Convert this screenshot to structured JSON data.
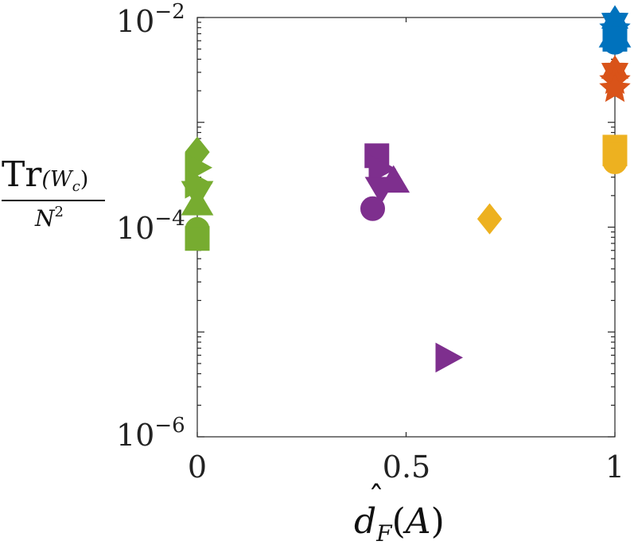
{
  "chart_data": {
    "type": "scatter",
    "title": "",
    "xlabel": {
      "base": "d",
      "hat": "ˆ",
      "sub": "F",
      "paren_open": "(",
      "arg": "A",
      "paren_close": ")"
    },
    "ylabel": {
      "num_text": "Tr",
      "num_sub": "(W",
      "num_sub_c": "c",
      "num_sub_close": ")",
      "den_text": "N",
      "den_sup": "2"
    },
    "xlim": [
      0,
      1
    ],
    "ylim": [
      1e-06,
      0.01
    ],
    "yscale": "log",
    "grid": false,
    "x_ticks": [
      "0",
      "0.5",
      "1"
    ],
    "y_ticks": [
      {
        "value": 1e-06,
        "base": "10",
        "exp": "−6"
      },
      {
        "value": 0.0001,
        "base": "10",
        "exp": "−4"
      },
      {
        "value": 0.01,
        "base": "10",
        "exp": "−2"
      }
    ],
    "series": [
      {
        "color": "#0072BD",
        "points": [
          {
            "x": 1.0,
            "y": 0.0093,
            "marker": "hexagram"
          },
          {
            "x": 1.0,
            "y": 0.0078,
            "marker": "pentagram"
          },
          {
            "x": 1.0,
            "y": 0.0068,
            "marker": "triangle-up"
          },
          {
            "x": 1.0,
            "y": 0.0062,
            "marker": "square"
          },
          {
            "x": 1.0,
            "y": 0.0058,
            "marker": "circle"
          }
        ]
      },
      {
        "color": "#D95319",
        "points": [
          {
            "x": 1.0,
            "y": 0.0031,
            "marker": "hexagram"
          },
          {
            "x": 1.0,
            "y": 0.0025,
            "marker": "pentagram"
          },
          {
            "x": 1.0,
            "y": 0.0021,
            "marker": "pentagram"
          }
        ]
      },
      {
        "color": "#EDB120",
        "points": [
          {
            "x": 1.0,
            "y": 0.00058,
            "marker": "square"
          },
          {
            "x": 1.0,
            "y": 0.0005,
            "marker": "square"
          },
          {
            "x": 1.0,
            "y": 0.00042,
            "marker": "circle"
          },
          {
            "x": 0.7,
            "y": 0.00012,
            "marker": "diamond"
          }
        ]
      },
      {
        "color": "#7E2F8E",
        "points": [
          {
            "x": 0.43,
            "y": 0.00048,
            "marker": "square"
          },
          {
            "x": 0.44,
            "y": 0.00036,
            "marker": "triangle-right"
          },
          {
            "x": 0.47,
            "y": 0.00028,
            "marker": "triangle-up"
          },
          {
            "x": 0.44,
            "y": 0.00023,
            "marker": "triangle-down"
          },
          {
            "x": 0.42,
            "y": 0.00015,
            "marker": "circle"
          },
          {
            "x": 0.6,
            "y": 5.7e-06,
            "marker": "triangle-right"
          }
        ]
      },
      {
        "color": "#77AC30",
        "points": [
          {
            "x": 0.0,
            "y": 0.00052,
            "marker": "diamond"
          },
          {
            "x": 0.0,
            "y": 0.00037,
            "marker": "triangle-right"
          },
          {
            "x": 0.0,
            "y": 0.00026,
            "marker": "triangle-right"
          },
          {
            "x": 0.0,
            "y": 0.00021,
            "marker": "triangle-down"
          },
          {
            "x": 0.0,
            "y": 0.00017,
            "marker": "triangle-up"
          },
          {
            "x": 0.0,
            "y": 9.5e-05,
            "marker": "circle"
          },
          {
            "x": 0.0,
            "y": 7.8e-05,
            "marker": "square"
          }
        ]
      }
    ]
  }
}
